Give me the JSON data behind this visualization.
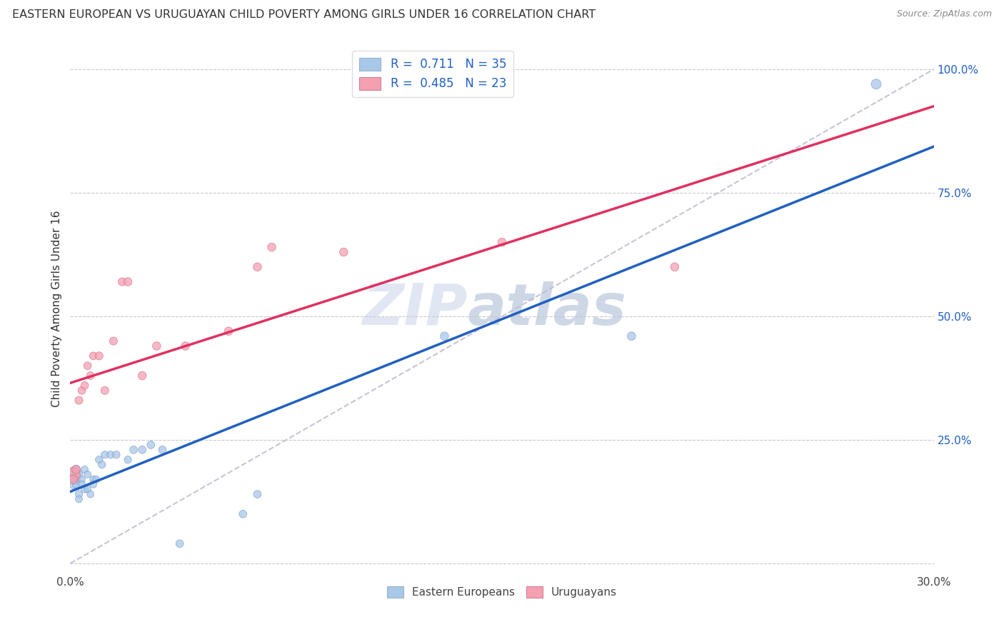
{
  "title": "EASTERN EUROPEAN VS URUGUAYAN CHILD POVERTY AMONG GIRLS UNDER 16 CORRELATION CHART",
  "source": "Source: ZipAtlas.com",
  "ylabel": "Child Poverty Among Girls Under 16",
  "xlim": [
    0.0,
    0.3
  ],
  "ylim": [
    -0.02,
    1.05
  ],
  "xtick_positions": [
    0.0,
    0.3
  ],
  "xtick_labels": [
    "0.0%",
    "30.0%"
  ],
  "yticks_right": [
    0.0,
    0.25,
    0.5,
    0.75,
    1.0
  ],
  "ytick_labels_right": [
    "",
    "25.0%",
    "50.0%",
    "75.0%",
    "100.0%"
  ],
  "grid_color": "#c8c8d0",
  "background_color": "#ffffff",
  "watermark": "ZIPatlas",
  "blue_color": "#a8c8e8",
  "pink_color": "#f4a0b0",
  "blue_line_color": "#2060c0",
  "pink_line_color": "#e03060",
  "diag_line_color": "#c0b8d0",
  "blue_dot_edge": "#7090c0",
  "pink_dot_edge": "#d06080",
  "eastern_europeans": {
    "x": [
      0.001,
      0.001,
      0.001,
      0.002,
      0.002,
      0.002,
      0.003,
      0.003,
      0.003,
      0.004,
      0.004,
      0.005,
      0.005,
      0.006,
      0.006,
      0.007,
      0.008,
      0.008,
      0.009,
      0.01,
      0.011,
      0.012,
      0.014,
      0.016,
      0.02,
      0.022,
      0.025,
      0.028,
      0.032,
      0.038,
      0.06,
      0.065,
      0.13,
      0.195,
      0.28
    ],
    "y": [
      0.18,
      0.17,
      0.16,
      0.19,
      0.17,
      0.16,
      0.18,
      0.14,
      0.13,
      0.17,
      0.16,
      0.15,
      0.19,
      0.18,
      0.15,
      0.14,
      0.17,
      0.16,
      0.17,
      0.21,
      0.2,
      0.22,
      0.22,
      0.22,
      0.21,
      0.23,
      0.23,
      0.24,
      0.23,
      0.04,
      0.1,
      0.14,
      0.46,
      0.46,
      0.97
    ],
    "sizes": [
      200,
      100,
      80,
      80,
      70,
      60,
      60,
      55,
      50,
      50,
      50,
      50,
      50,
      50,
      50,
      50,
      50,
      50,
      50,
      55,
      55,
      55,
      55,
      55,
      55,
      60,
      60,
      60,
      60,
      60,
      60,
      60,
      70,
      70,
      100
    ]
  },
  "uruguayans": {
    "x": [
      0.001,
      0.001,
      0.002,
      0.003,
      0.004,
      0.005,
      0.006,
      0.007,
      0.008,
      0.01,
      0.012,
      0.015,
      0.018,
      0.02,
      0.025,
      0.03,
      0.04,
      0.055,
      0.065,
      0.07,
      0.095,
      0.15,
      0.21
    ],
    "y": [
      0.18,
      0.17,
      0.19,
      0.33,
      0.35,
      0.36,
      0.4,
      0.38,
      0.42,
      0.42,
      0.35,
      0.45,
      0.57,
      0.57,
      0.38,
      0.44,
      0.44,
      0.47,
      0.6,
      0.64,
      0.63,
      0.65,
      0.6
    ],
    "sizes": [
      200,
      80,
      70,
      65,
      60,
      60,
      60,
      60,
      60,
      65,
      65,
      65,
      65,
      70,
      70,
      70,
      70,
      70,
      70,
      70,
      70,
      70,
      70
    ]
  }
}
